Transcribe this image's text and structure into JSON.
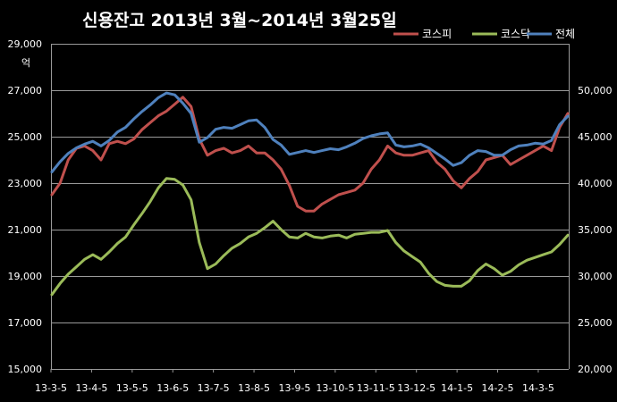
{
  "chart_data": {
    "type": "line",
    "title": "신용잔고 2013년 3월~2014년 3월25일",
    "left_axis": {
      "unit_label": "억",
      "ylim": [
        15000,
        29000
      ],
      "ticks": [
        15000,
        17000,
        19000,
        21000,
        23000,
        25000,
        27000,
        29000
      ],
      "tick_labels": [
        "15,000",
        "17,000",
        "19,000",
        "21,000",
        "23,000",
        "25,000",
        "27,000",
        "29,000"
      ]
    },
    "right_axis": {
      "ylim": [
        20000,
        55000
      ],
      "ticks": [
        20000,
        25000,
        30000,
        35000,
        40000,
        45000,
        50000
      ],
      "tick_labels": [
        "20,000",
        "25,000",
        "30,000",
        "35,000",
        "40,000",
        "45,000",
        "50,000"
      ]
    },
    "x_labels": [
      "13-3-5",
      "13-4-5",
      "13-5-5",
      "13-6-5",
      "13-7-5",
      "13-8-5",
      "13-9-5",
      "13-10-5",
      "13-11-5",
      "13-12-5",
      "14-1-5",
      "14-2-5",
      "14-3-5"
    ],
    "legend_position": "top-right",
    "grid": true,
    "series": [
      {
        "name": "코스피",
        "axis": "left",
        "color": "#c0504d",
        "values": [
          22500,
          23000,
          24000,
          24500,
          24600,
          24400,
          24000,
          24700,
          24800,
          24700,
          24900,
          25300,
          25600,
          25900,
          26100,
          26400,
          26700,
          26300,
          24900,
          24200,
          24400,
          24500,
          24300,
          24400,
          24600,
          24300,
          24300,
          24000,
          23600,
          22900,
          22000,
          21800,
          21800,
          22100,
          22300,
          22500,
          22600,
          22700,
          23000,
          23600,
          24000,
          24600,
          24300,
          24200,
          24200,
          24300,
          24400,
          23900,
          23600,
          23100,
          22800,
          23200,
          23500,
          24000,
          24100,
          24200,
          23800,
          24000,
          24200,
          24400,
          24600,
          24400,
          25400,
          26000
        ]
      },
      {
        "name": "코스닥",
        "axis": "right",
        "color": "#9bbb59",
        "values": [
          28000,
          29200,
          30200,
          31000,
          31800,
          32300,
          31800,
          32600,
          33500,
          34200,
          35500,
          36700,
          38000,
          39500,
          40500,
          40400,
          39800,
          38200,
          33600,
          30800,
          31300,
          32200,
          33000,
          33500,
          34200,
          34600,
          35200,
          35900,
          35000,
          34200,
          34100,
          34600,
          34200,
          34100,
          34300,
          34400,
          34100,
          34500,
          34600,
          34700,
          34700,
          34900,
          33600,
          32700,
          32100,
          31500,
          30300,
          29400,
          29000,
          28900,
          28900,
          29500,
          30600,
          31300,
          30800,
          30100,
          30500,
          31200,
          31700,
          32000,
          32300,
          32600,
          33400,
          34400
        ]
      },
      {
        "name": "전체",
        "axis": "right",
        "color": "#4f81bd",
        "values": [
          41200,
          42300,
          43200,
          43800,
          44200,
          44500,
          44000,
          44600,
          45500,
          46000,
          46900,
          47700,
          48400,
          49200,
          49700,
          49500,
          48600,
          47500,
          44400,
          44900,
          45800,
          46000,
          45900,
          46300,
          46700,
          46800,
          46000,
          44700,
          44100,
          43100,
          43300,
          43500,
          43300,
          43500,
          43700,
          43600,
          43900,
          44300,
          44800,
          45100,
          45300,
          45400,
          44100,
          43900,
          44000,
          44200,
          43800,
          43200,
          42600,
          41900,
          42200,
          43000,
          43500,
          43400,
          43000,
          43000,
          43600,
          44000,
          44100,
          44300,
          44200,
          44600,
          46300,
          47200
        ]
      }
    ]
  }
}
